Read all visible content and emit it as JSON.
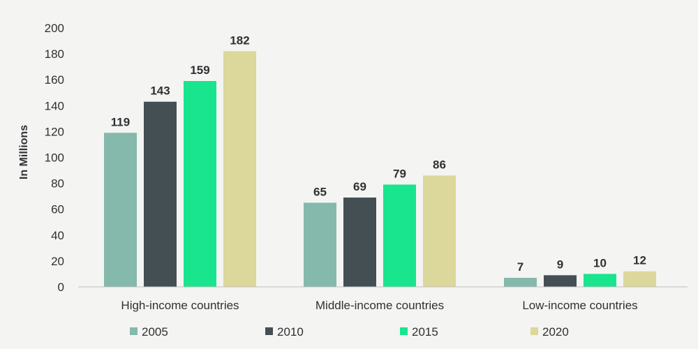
{
  "chart_data": {
    "type": "bar",
    "title": "",
    "xlabel": "",
    "ylabel": "In Millions",
    "ylim": [
      0,
      200
    ],
    "yticks": [
      0,
      20,
      40,
      60,
      80,
      100,
      120,
      140,
      160,
      180,
      200
    ],
    "grid": false,
    "legend_position": "bottom",
    "categories": [
      "High-income countries",
      "Middle-income countries",
      "Low-income countries"
    ],
    "series": [
      {
        "name": "2005",
        "color": "#84b9ab",
        "values": [
          119,
          65,
          7
        ]
      },
      {
        "name": "2010",
        "color": "#434f53",
        "values": [
          143,
          69,
          9
        ]
      },
      {
        "name": "2015",
        "color": "#18e58d",
        "values": [
          159,
          79,
          10
        ]
      },
      {
        "name": "2020",
        "color": "#dcd79a",
        "values": [
          182,
          86,
          12
        ]
      }
    ]
  }
}
